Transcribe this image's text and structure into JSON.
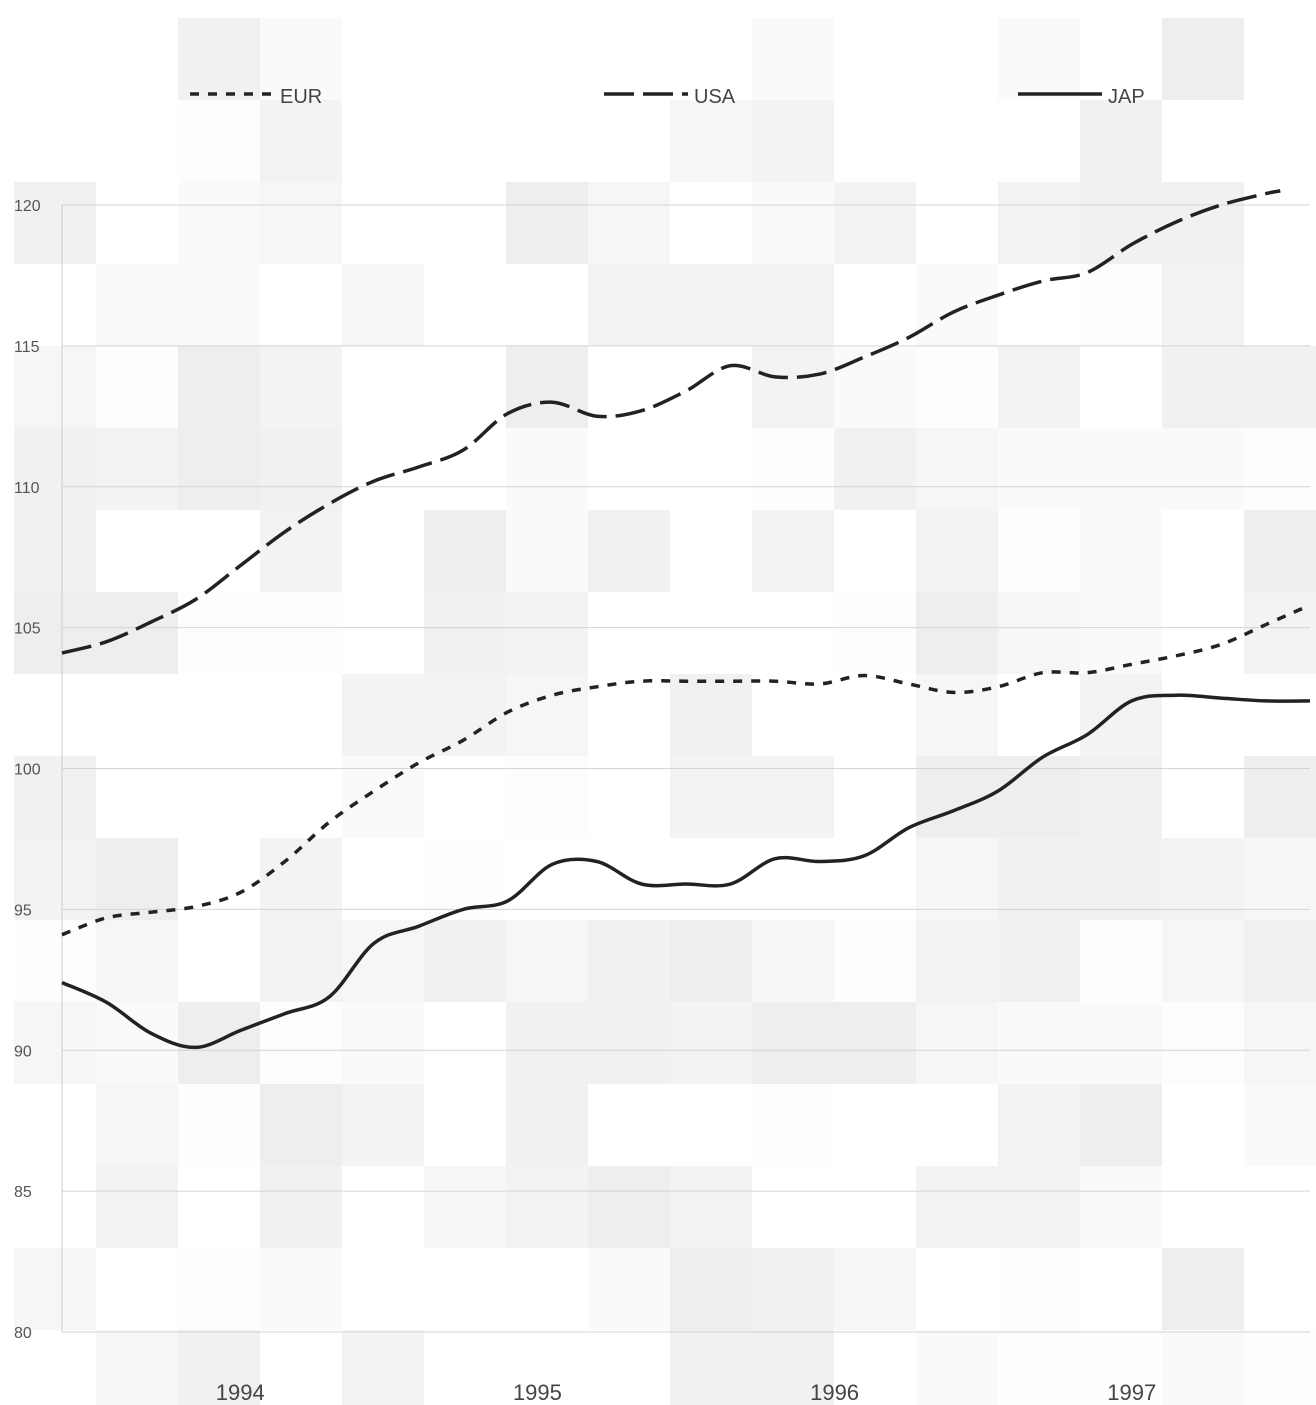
{
  "chart_data": {
    "type": "line",
    "title": "",
    "xlabel": "",
    "ylabel": "",
    "ylim": [
      80,
      120
    ],
    "yticks": [
      120,
      115,
      110,
      105,
      100,
      95,
      90,
      85,
      80
    ],
    "x_tick_labels": [
      {
        "label": "1994",
        "x": 1994.0
      },
      {
        "label": "1995",
        "x": 1995.0
      },
      {
        "label": "1996",
        "x": 1996.0
      },
      {
        "label": "1997",
        "x": 1997.0
      }
    ],
    "xlim": [
      1993.4,
      1997.6
    ],
    "grid": true,
    "legend_position": "top",
    "series": [
      {
        "name": "EUR",
        "style": "dotted",
        "color": "#222222",
        "x": [
          1993.4,
          1993.55,
          1993.7,
          1993.85,
          1994.0,
          1994.15,
          1994.3,
          1994.45,
          1994.6,
          1994.75,
          1994.9,
          1995.05,
          1995.2,
          1995.35,
          1995.5,
          1995.65,
          1995.8,
          1995.95,
          1996.1,
          1996.25,
          1996.4,
          1996.55,
          1996.7,
          1996.85,
          1997.0,
          1997.15,
          1997.3,
          1997.45,
          1997.6
        ],
        "y": [
          94.1,
          94.7,
          94.9,
          95.1,
          95.6,
          96.7,
          98.1,
          99.2,
          100.2,
          101.0,
          102.0,
          102.6,
          102.9,
          103.1,
          103.1,
          103.1,
          103.1,
          103.0,
          103.3,
          103.0,
          102.7,
          102.9,
          103.4,
          103.4,
          103.7,
          104.0,
          104.4,
          105.1,
          105.8
        ]
      },
      {
        "name": "USA",
        "style": "dashed",
        "color": "#222222",
        "x": [
          1993.4,
          1993.55,
          1993.7,
          1993.85,
          1994.0,
          1994.15,
          1994.3,
          1994.45,
          1994.6,
          1994.75,
          1994.9,
          1995.05,
          1995.2,
          1995.35,
          1995.5,
          1995.65,
          1995.8,
          1995.95,
          1996.1,
          1996.25,
          1996.4,
          1996.55,
          1996.7,
          1996.85,
          1997.0,
          1997.15,
          1997.3,
          1997.45,
          1997.5
        ],
        "y": [
          104.1,
          104.5,
          105.2,
          106.0,
          107.2,
          108.4,
          109.4,
          110.2,
          110.7,
          111.3,
          112.6,
          113.0,
          112.5,
          112.7,
          113.4,
          114.3,
          113.9,
          114.0,
          114.6,
          115.3,
          116.2,
          116.8,
          117.3,
          117.6,
          118.6,
          119.4,
          120.0,
          120.4,
          120.5
        ]
      },
      {
        "name": "JAP",
        "style": "solid",
        "color": "#222222",
        "x": [
          1993.4,
          1993.55,
          1993.7,
          1993.85,
          1994.0,
          1994.15,
          1994.3,
          1994.45,
          1994.6,
          1994.75,
          1994.9,
          1995.05,
          1995.2,
          1995.35,
          1995.5,
          1995.65,
          1995.8,
          1995.95,
          1996.1,
          1996.25,
          1996.4,
          1996.55,
          1996.7,
          1996.85,
          1997.0,
          1997.15,
          1997.3,
          1997.45,
          1997.6
        ],
        "y": [
          92.4,
          91.7,
          90.6,
          90.1,
          90.7,
          91.3,
          91.9,
          93.8,
          94.4,
          95.0,
          95.3,
          96.6,
          96.7,
          95.9,
          95.9,
          95.9,
          96.8,
          96.7,
          96.9,
          97.9,
          98.5,
          99.2,
          100.4,
          101.2,
          102.4,
          102.6,
          102.5,
          102.4,
          102.4
        ]
      }
    ]
  }
}
